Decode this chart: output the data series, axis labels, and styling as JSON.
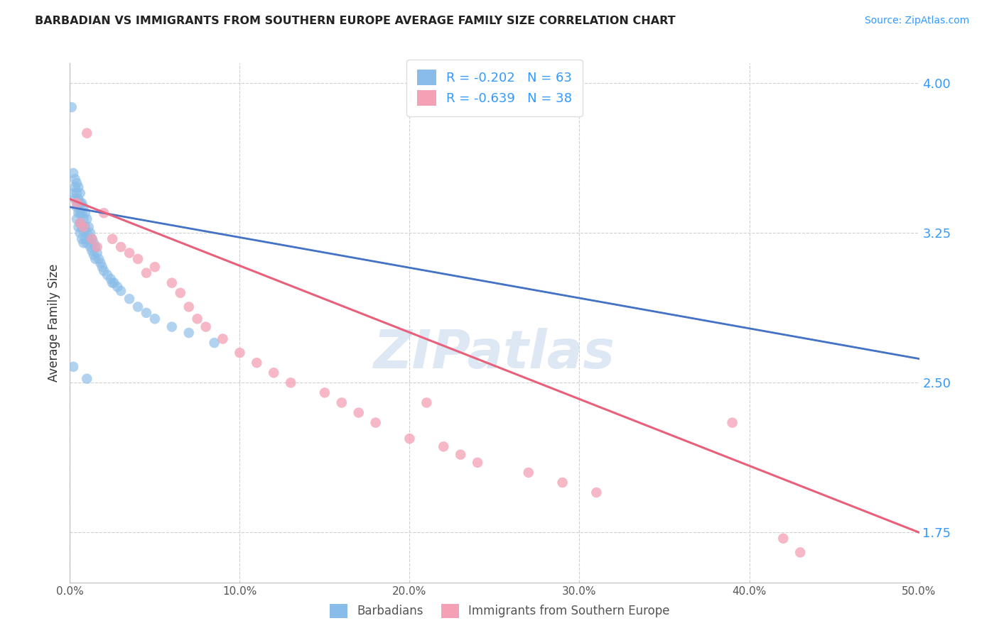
{
  "title": "BARBADIAN VS IMMIGRANTS FROM SOUTHERN EUROPE AVERAGE FAMILY SIZE CORRELATION CHART",
  "source_text": "Source: ZipAtlas.com",
  "ylabel": "Average Family Size",
  "xmin": 0.0,
  "xmax": 0.5,
  "ymin": 1.5,
  "ymax": 4.1,
  "yticks": [
    1.75,
    2.5,
    3.25,
    4.0
  ],
  "grid_color": "#d0d0d0",
  "background_color": "#ffffff",
  "blue_R": -0.202,
  "blue_N": 63,
  "pink_R": -0.639,
  "pink_N": 38,
  "blue_color": "#89bce8",
  "pink_color": "#f4a0b5",
  "blue_line_color": "#4472c4",
  "pink_line_color": "#e8607a",
  "blue_dash_color": "#a8c8f0",
  "legend_label_blue": "Barbadians",
  "legend_label_pink": "Immigrants from Southern Europe",
  "watermark": "ZIPatlas",
  "watermark_color": "#c8d8ee",
  "blue_scatter_x": [
    0.001,
    0.002,
    0.002,
    0.003,
    0.003,
    0.003,
    0.004,
    0.004,
    0.004,
    0.004,
    0.005,
    0.005,
    0.005,
    0.005,
    0.006,
    0.006,
    0.006,
    0.006,
    0.006,
    0.007,
    0.007,
    0.007,
    0.007,
    0.008,
    0.008,
    0.008,
    0.008,
    0.009,
    0.009,
    0.009,
    0.01,
    0.01,
    0.01,
    0.011,
    0.011,
    0.012,
    0.012,
    0.013,
    0.013,
    0.014,
    0.014,
    0.015,
    0.015,
    0.016,
    0.017,
    0.018,
    0.019,
    0.02,
    0.022,
    0.024,
    0.026,
    0.028,
    0.03,
    0.035,
    0.04,
    0.045,
    0.05,
    0.06,
    0.07,
    0.085,
    0.002,
    0.01,
    0.025
  ],
  "blue_scatter_y": [
    3.88,
    3.55,
    3.45,
    3.52,
    3.48,
    3.42,
    3.5,
    3.45,
    3.38,
    3.32,
    3.48,
    3.42,
    3.35,
    3.28,
    3.45,
    3.4,
    3.35,
    3.3,
    3.25,
    3.4,
    3.35,
    3.28,
    3.22,
    3.38,
    3.32,
    3.26,
    3.2,
    3.35,
    3.28,
    3.22,
    3.32,
    3.25,
    3.2,
    3.28,
    3.22,
    3.25,
    3.18,
    3.22,
    3.16,
    3.2,
    3.14,
    3.18,
    3.12,
    3.15,
    3.12,
    3.1,
    3.08,
    3.06,
    3.04,
    3.02,
    3.0,
    2.98,
    2.96,
    2.92,
    2.88,
    2.85,
    2.82,
    2.78,
    2.75,
    2.7,
    2.58,
    2.52,
    3.0
  ],
  "pink_scatter_x": [
    0.004,
    0.006,
    0.008,
    0.01,
    0.013,
    0.016,
    0.02,
    0.025,
    0.03,
    0.035,
    0.04,
    0.045,
    0.05,
    0.06,
    0.065,
    0.07,
    0.075,
    0.08,
    0.09,
    0.1,
    0.11,
    0.12,
    0.13,
    0.15,
    0.16,
    0.17,
    0.18,
    0.2,
    0.21,
    0.22,
    0.23,
    0.24,
    0.27,
    0.29,
    0.31,
    0.39,
    0.42,
    0.43
  ],
  "pink_scatter_y": [
    3.4,
    3.3,
    3.28,
    3.75,
    3.22,
    3.18,
    3.35,
    3.22,
    3.18,
    3.15,
    3.12,
    3.05,
    3.08,
    3.0,
    2.95,
    2.88,
    2.82,
    2.78,
    2.72,
    2.65,
    2.6,
    2.55,
    2.5,
    2.45,
    2.4,
    2.35,
    2.3,
    2.22,
    2.4,
    2.18,
    2.14,
    2.1,
    2.05,
    2.0,
    1.95,
    2.3,
    1.72,
    1.65
  ],
  "blue_line_x0": 0.0,
  "blue_line_y0": 3.38,
  "blue_line_x1": 0.5,
  "blue_line_y1": 2.62,
  "pink_line_x0": 0.0,
  "pink_line_y0": 3.42,
  "pink_line_x1": 0.5,
  "pink_line_y1": 1.75
}
